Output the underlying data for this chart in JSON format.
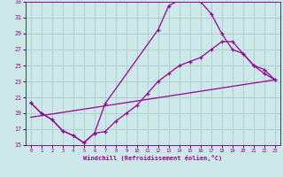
{
  "xlabel": "Windchill (Refroidissement éolien,°C)",
  "ylabel": "",
  "xlim": [
    -0.5,
    23.5
  ],
  "ylim": [
    15,
    33
  ],
  "xticks": [
    0,
    1,
    2,
    3,
    4,
    5,
    6,
    7,
    8,
    9,
    10,
    11,
    12,
    13,
    14,
    15,
    16,
    17,
    18,
    19,
    20,
    21,
    22,
    23
  ],
  "yticks": [
    15,
    17,
    19,
    21,
    23,
    25,
    27,
    29,
    31,
    33
  ],
  "bg_color": "#cce8e8",
  "grid_color": "#aacccc",
  "line_color": "#990099",
  "line1_x": [
    0,
    1,
    2,
    3,
    4,
    5,
    6,
    7,
    12,
    13,
    14,
    15,
    16,
    17,
    18,
    19,
    20,
    21,
    22,
    23
  ],
  "line1_y": [
    20.3,
    19.0,
    18.2,
    16.8,
    16.2,
    15.3,
    16.5,
    20.2,
    29.5,
    32.5,
    33.2,
    33.2,
    33.0,
    31.5,
    29.0,
    27.0,
    26.5,
    25.0,
    24.0,
    23.2
  ],
  "line2_x": [
    0,
    1,
    2,
    3,
    4,
    5,
    6,
    7,
    8,
    9,
    10,
    11,
    12,
    13,
    14,
    15,
    16,
    17,
    18,
    19,
    20,
    21,
    22,
    23
  ],
  "line2_y": [
    20.3,
    19.0,
    18.2,
    16.8,
    16.2,
    15.3,
    16.5,
    16.7,
    18.0,
    19.0,
    20.0,
    21.5,
    23.0,
    24.0,
    25.0,
    25.5,
    26.0,
    27.0,
    28.0,
    28.0,
    26.5,
    25.0,
    24.5,
    23.2
  ],
  "line3_x": [
    0,
    23
  ],
  "line3_y": [
    18.5,
    23.2
  ]
}
